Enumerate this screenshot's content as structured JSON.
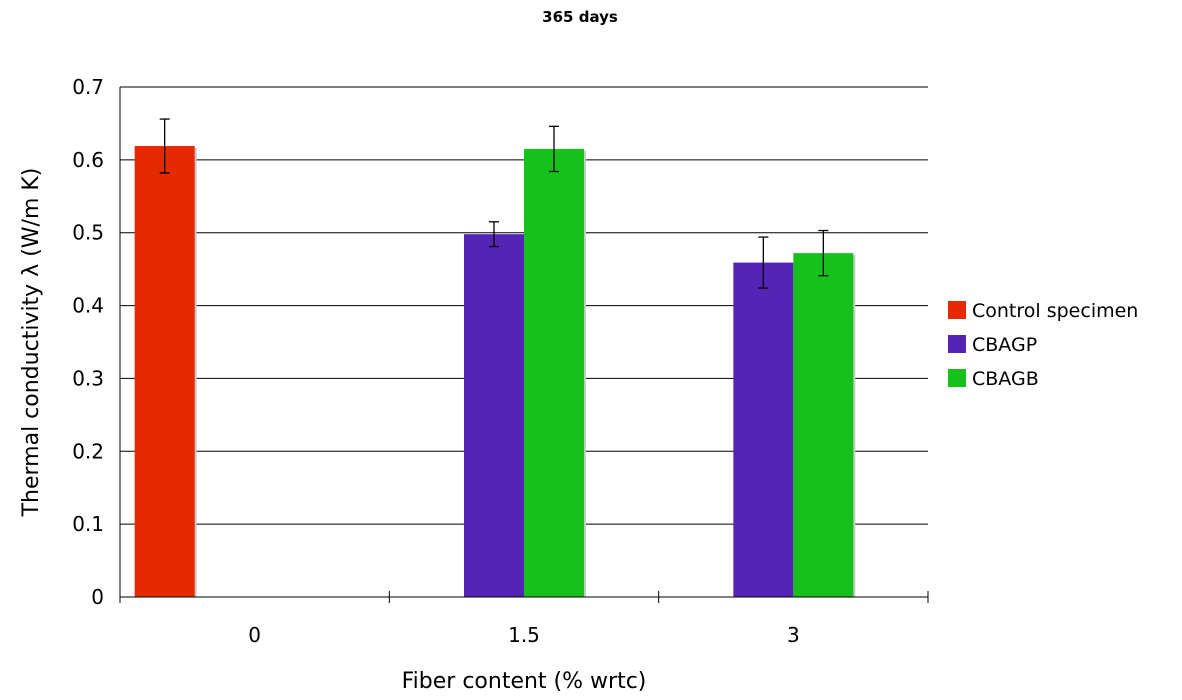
{
  "chart_data": {
    "type": "bar",
    "title": "365 days",
    "xlabel": "Fiber content (% wrtc)",
    "ylabel": "Thermal conductivity λ (W/m K)",
    "categories": [
      "0",
      "1.5",
      "3"
    ],
    "ylim": [
      0,
      0.7
    ],
    "yticks": [
      "0",
      "0.1",
      "0.2",
      "0.3",
      "0.4",
      "0.5",
      "0.6",
      "0.7"
    ],
    "grid": true,
    "legend_position": "right",
    "series": [
      {
        "name": "Control specimen",
        "color": "#e52a02",
        "values": [
          0.619,
          null,
          null
        ],
        "errors": [
          0.037,
          null,
          null
        ]
      },
      {
        "name": "CBAGP",
        "color": "#5524b4",
        "values": [
          null,
          0.498,
          0.459
        ],
        "errors": [
          null,
          0.017,
          0.035
        ]
      },
      {
        "name": "CBAGB",
        "color": "#15c11a",
        "values": [
          null,
          0.615,
          0.472
        ],
        "errors": [
          null,
          0.031,
          0.031
        ]
      }
    ]
  }
}
